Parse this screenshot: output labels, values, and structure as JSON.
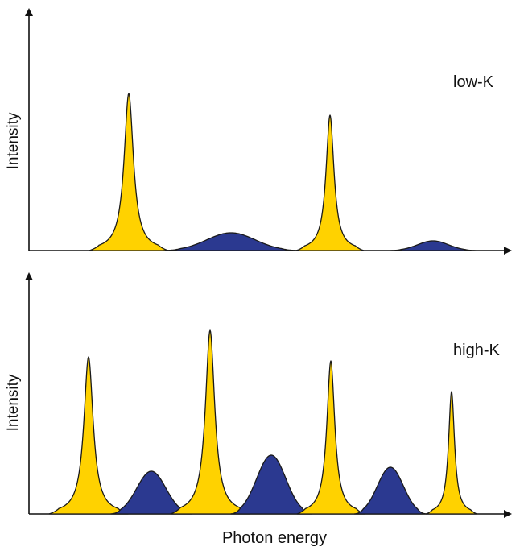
{
  "x_axis_label": "Photon energy",
  "panels": [
    {
      "label": "low-K",
      "y_axis_label": "Intensity",
      "peaks": [
        {
          "kind": "harmonic",
          "center": 160,
          "height": 195,
          "width": 7,
          "color": "#ffd200"
        },
        {
          "kind": "broad",
          "center": 287,
          "height": 22,
          "width": 30,
          "color": "#2b3990"
        },
        {
          "kind": "harmonic",
          "center": 410,
          "height": 168,
          "width": 6,
          "color": "#ffd200"
        },
        {
          "kind": "broad",
          "center": 538,
          "height": 12,
          "width": 19,
          "color": "#2b3990"
        }
      ]
    },
    {
      "label": "high-K",
      "y_axis_label": "Intensity",
      "peaks": [
        {
          "kind": "harmonic",
          "center": 110,
          "height": 195,
          "width": 7,
          "color": "#ffd200"
        },
        {
          "kind": "broad",
          "center": 188,
          "height": 53,
          "width": 18,
          "color": "#2b3990"
        },
        {
          "kind": "harmonic",
          "center": 261,
          "height": 228,
          "width": 7,
          "color": "#ffd200"
        },
        {
          "kind": "broad",
          "center": 337,
          "height": 73,
          "width": 18,
          "color": "#2b3990"
        },
        {
          "kind": "harmonic",
          "center": 411,
          "height": 190,
          "width": 6,
          "color": "#ffd200"
        },
        {
          "kind": "broad",
          "center": 485,
          "height": 58,
          "width": 16,
          "color": "#2b3990"
        },
        {
          "kind": "harmonic",
          "center": 561,
          "height": 152,
          "width": 4.5,
          "color": "#ffd200"
        }
      ]
    }
  ]
}
